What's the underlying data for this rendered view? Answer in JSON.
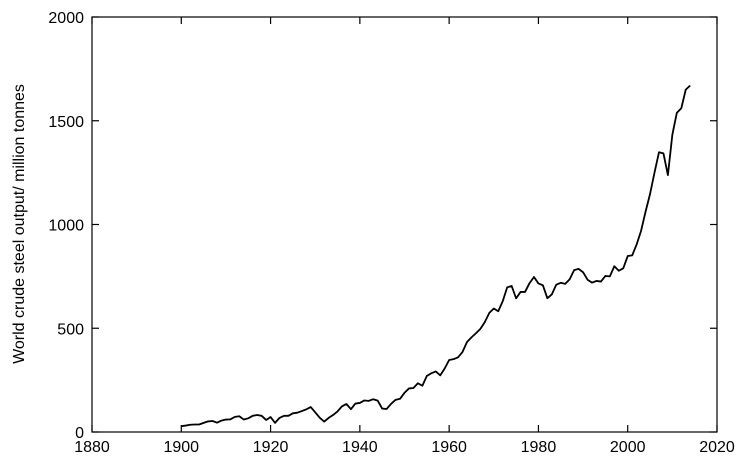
{
  "chart_data": {
    "type": "line",
    "ylabel": "World crude steel output/ million tonnes",
    "xlim": [
      1880,
      2020
    ],
    "xticks": [
      1880,
      1900,
      1920,
      1940,
      1960,
      1980,
      2000,
      2020
    ],
    "ylim": [
      0,
      2000
    ],
    "yticks": [
      0,
      500,
      1000,
      1500,
      2000
    ],
    "x": [
      1900,
      1901,
      1902,
      1903,
      1904,
      1905,
      1906,
      1907,
      1908,
      1909,
      1910,
      1911,
      1912,
      1913,
      1914,
      1915,
      1916,
      1917,
      1918,
      1919,
      1920,
      1921,
      1922,
      1923,
      1924,
      1925,
      1926,
      1927,
      1928,
      1929,
      1930,
      1931,
      1932,
      1933,
      1934,
      1935,
      1936,
      1937,
      1938,
      1939,
      1940,
      1941,
      1942,
      1943,
      1944,
      1945,
      1946,
      1947,
      1948,
      1949,
      1950,
      1951,
      1952,
      1953,
      1954,
      1955,
      1956,
      1957,
      1958,
      1959,
      1960,
      1961,
      1962,
      1963,
      1964,
      1965,
      1966,
      1967,
      1968,
      1969,
      1970,
      1971,
      1972,
      1973,
      1974,
      1975,
      1976,
      1977,
      1978,
      1979,
      1980,
      1981,
      1982,
      1983,
      1984,
      1985,
      1986,
      1987,
      1988,
      1989,
      1990,
      1991,
      1992,
      1993,
      1994,
      1995,
      1996,
      1997,
      1998,
      1999,
      2000,
      2001,
      2002,
      2003,
      2004,
      2005,
      2006,
      2007,
      2008,
      2009,
      2010,
      2011,
      2012,
      2013,
      2014
    ],
    "series": [
      {
        "color": "#000000",
        "values": [
          28,
          31,
          35,
          36,
          36,
          44,
          51,
          53,
          45,
          55,
          60,
          61,
          73,
          76,
          60,
          66,
          78,
          82,
          78,
          58,
          72,
          44,
          68,
          78,
          78,
          90,
          93,
          101,
          109,
          120,
          95,
          69,
          50,
          68,
          82,
          99,
          124,
          135,
          110,
          137,
          140,
          152,
          150,
          158,
          151,
          113,
          111,
          136,
          155,
          160,
          189,
          210,
          212,
          235,
          223,
          270,
          283,
          292,
          273,
          306,
          347,
          351,
          360,
          386,
          434,
          456,
          476,
          497,
          530,
          574,
          595,
          582,
          630,
          697,
          704,
          644,
          675,
          675,
          717,
          747,
          716,
          707,
          645,
          663,
          710,
          719,
          714,
          736,
          780,
          786,
          770,
          734,
          720,
          728,
          725,
          752,
          750,
          799,
          777,
          789,
          848,
          851,
          904,
          970,
          1062,
          1147,
          1250,
          1348,
          1343,
          1238,
          1433,
          1538,
          1560,
          1650,
          1670
        ]
      }
    ]
  }
}
